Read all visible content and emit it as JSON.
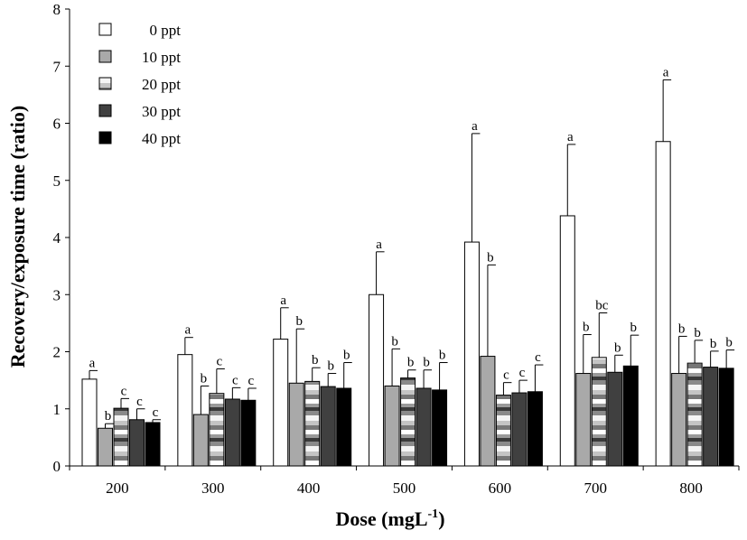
{
  "chart_data": {
    "type": "bar",
    "xlabel": "Dose (mgL",
    "xlabel_sup": "-1",
    "xlabel_end": ")",
    "ylabel": "Recovery/exposure  time  (ratio)",
    "ylim": [
      0,
      8
    ],
    "yticks": [
      "0",
      "1",
      "2",
      "3",
      "4",
      "5",
      "6",
      "7",
      "8"
    ],
    "categories": [
      "200",
      "300",
      "400",
      "500",
      "600",
      "700",
      "800"
    ],
    "legend_position": "top-left",
    "series": [
      {
        "name": "0 ppt",
        "style": "white",
        "values": [
          1.52,
          1.95,
          2.22,
          3.0,
          3.92,
          4.38,
          5.68
        ],
        "errors": [
          0.15,
          0.3,
          0.55,
          0.75,
          1.9,
          1.25,
          1.08
        ],
        "letters": [
          "a",
          "a",
          "a",
          "a",
          "a",
          "a",
          "a"
        ]
      },
      {
        "name": "10 ppt",
        "style": "lightgray",
        "values": [
          0.66,
          0.9,
          1.45,
          1.4,
          1.92,
          1.62,
          1.62
        ],
        "errors": [
          0.08,
          0.5,
          0.95,
          0.65,
          1.6,
          0.68,
          0.65
        ],
        "letters": [
          "b",
          "b",
          "b",
          "b",
          "b",
          "b",
          "b"
        ]
      },
      {
        "name": "20 ppt",
        "style": "striped",
        "values": [
          1.01,
          1.27,
          1.48,
          1.54,
          1.24,
          1.9,
          1.8
        ],
        "errors": [
          0.17,
          0.43,
          0.24,
          0.14,
          0.22,
          0.78,
          0.4
        ],
        "letters": [
          "c",
          "c",
          "b",
          "b",
          "c",
          "bc",
          "b"
        ]
      },
      {
        "name": "30 ppt",
        "style": "darkgray",
        "values": [
          0.81,
          1.17,
          1.39,
          1.36,
          1.28,
          1.64,
          1.73
        ],
        "errors": [
          0.19,
          0.2,
          0.23,
          0.32,
          0.22,
          0.3,
          0.28
        ],
        "letters": [
          "c",
          "c",
          "b",
          "b",
          "c",
          "b",
          "b"
        ]
      },
      {
        "name": "40 ppt",
        "style": "black",
        "values": [
          0.76,
          1.15,
          1.36,
          1.33,
          1.3,
          1.75,
          1.71
        ],
        "errors": [
          0.05,
          0.21,
          0.45,
          0.48,
          0.47,
          0.54,
          0.32
        ],
        "letters": [
          "c",
          "c",
          "b",
          "b",
          "c",
          "b",
          "b"
        ]
      }
    ]
  }
}
